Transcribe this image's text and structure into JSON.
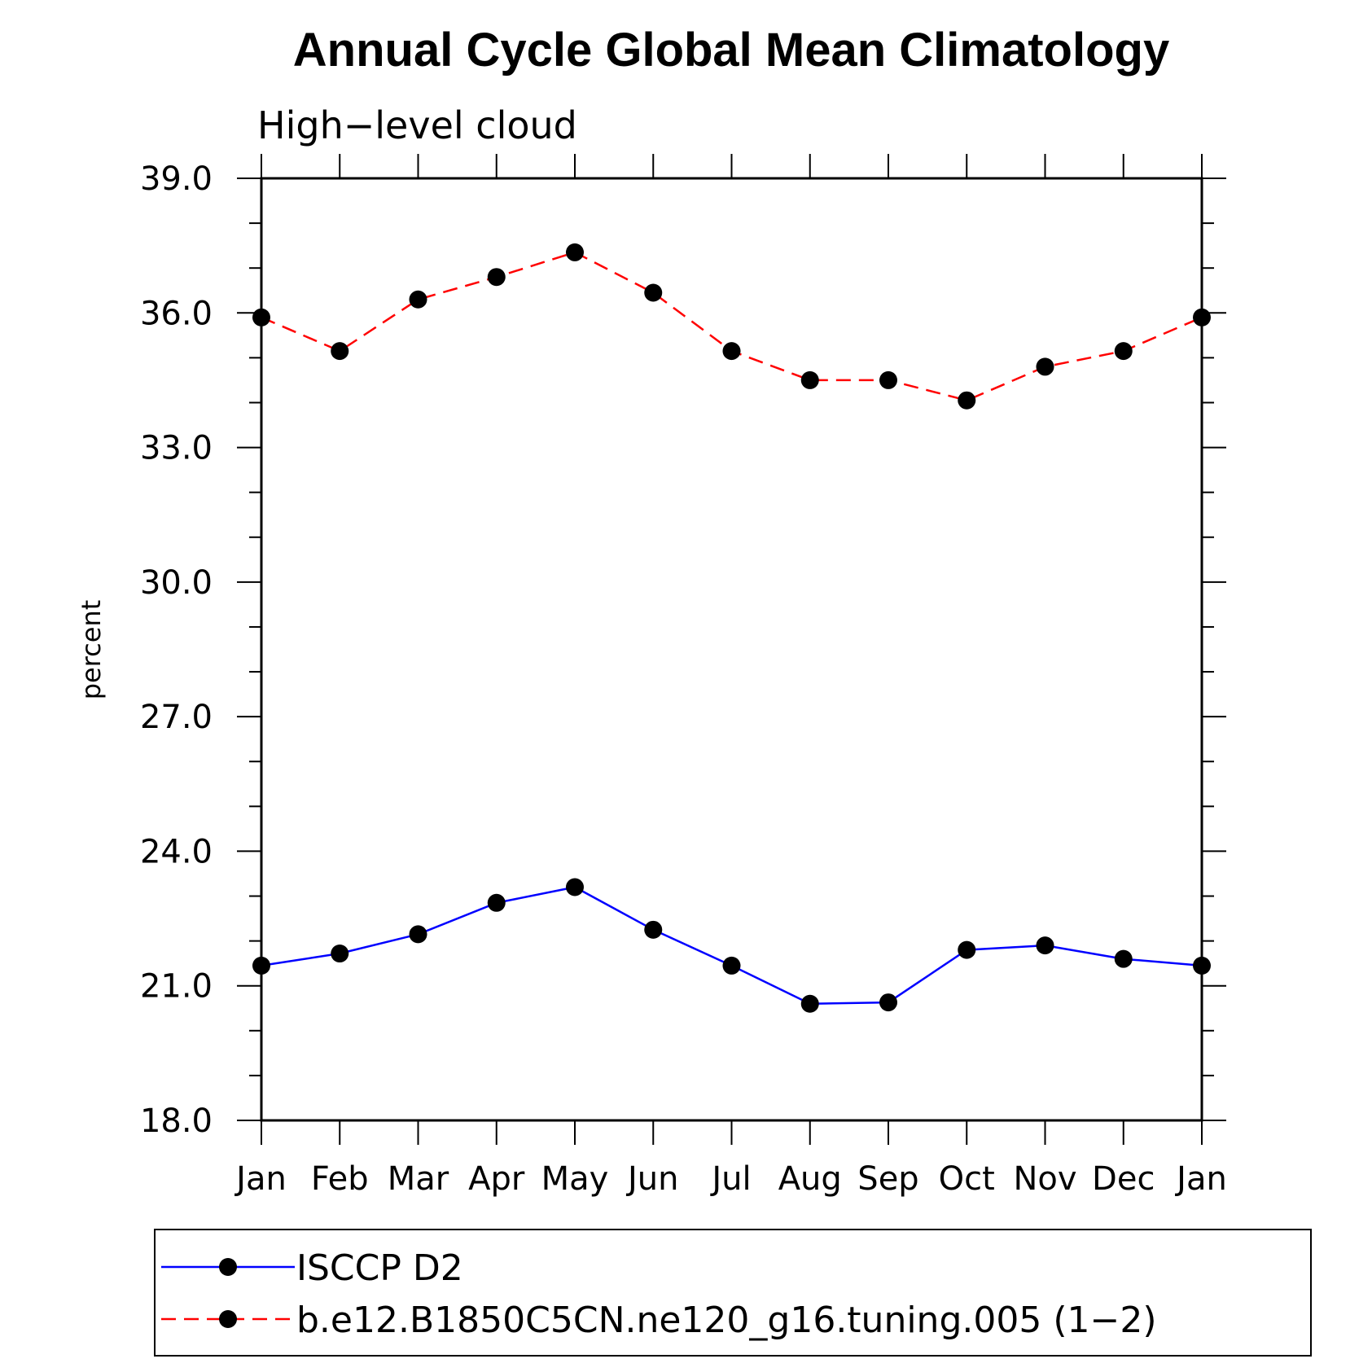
{
  "chart_data": {
    "type": "line",
    "title": "Annual Cycle Global Mean Climatology",
    "subtitle": "High−level cloud",
    "ylabel": "percent",
    "xlabel": "",
    "ylim": [
      18.0,
      39.0
    ],
    "yticks": [
      "18.0",
      "21.0",
      "24.0",
      "27.0",
      "30.0",
      "33.0",
      "36.0",
      "39.0"
    ],
    "categories": [
      "Jan",
      "Feb",
      "Mar",
      "Apr",
      "May",
      "Jun",
      "Jul",
      "Aug",
      "Sep",
      "Oct",
      "Nov",
      "Dec",
      "Jan"
    ],
    "legend_position": "bottom",
    "series": [
      {
        "name": "ISCCP D2",
        "color": "#0000ff",
        "dash": "solid",
        "values": [
          21.45,
          21.72,
          22.15,
          22.85,
          23.2,
          22.25,
          21.45,
          20.6,
          20.63,
          21.8,
          21.9,
          21.6,
          21.45
        ]
      },
      {
        "name": "b.e12.B1850C5CN.ne120_g16.tuning.005 (1−2)",
        "color": "#ff0000",
        "dash": "dashed",
        "values": [
          35.9,
          35.15,
          36.3,
          36.8,
          37.35,
          36.45,
          35.15,
          34.5,
          34.5,
          34.05,
          34.8,
          35.15,
          35.9
        ]
      }
    ]
  }
}
